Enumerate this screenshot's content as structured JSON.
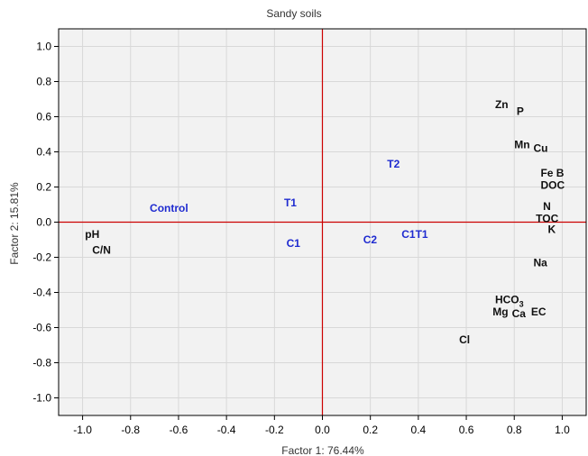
{
  "chart_data": {
    "type": "scatter",
    "title": "Sandy soils",
    "xlabel": "Factor 1: 76.44%",
    "ylabel": "Factor 2: 15.81%",
    "xlim": [
      -1.1,
      1.1
    ],
    "ylim": [
      -1.1,
      1.1
    ],
    "xticks": [
      "-1.0",
      "-0.8",
      "-0.6",
      "-0.4",
      "-0.2",
      "0.0",
      "0.2",
      "0.4",
      "0.6",
      "0.8",
      "1.0"
    ],
    "yticks": [
      "1.0",
      "0.8",
      "0.6",
      "0.4",
      "0.2",
      "0.0",
      "-0.2",
      "-0.4",
      "-0.6",
      "-0.8",
      "-1.0"
    ],
    "grid": true,
    "reference_lines": {
      "x": 0,
      "y": 0,
      "color": "#cc0000"
    },
    "variables": [
      {
        "label": "Zn",
        "x": 0.72,
        "y": 0.67
      },
      {
        "label": "P",
        "x": 0.81,
        "y": 0.63
      },
      {
        "label": "Mn",
        "x": 0.8,
        "y": 0.44
      },
      {
        "label": "Cu",
        "x": 0.88,
        "y": 0.42
      },
      {
        "label": "Fe B",
        "x": 0.91,
        "y": 0.28
      },
      {
        "label": "DOC",
        "x": 0.91,
        "y": 0.21
      },
      {
        "label": "N",
        "x": 0.92,
        "y": 0.09
      },
      {
        "label": "TOC",
        "x": 0.89,
        "y": 0.02
      },
      {
        "label": "K",
        "x": 0.94,
        "y": -0.04
      },
      {
        "label": "Na",
        "x": 0.88,
        "y": -0.23
      },
      {
        "label": "HCO",
        "x": 0.72,
        "y": -0.44,
        "subscript": "3"
      },
      {
        "label": "Mg",
        "x": 0.71,
        "y": -0.51
      },
      {
        "label": "Ca",
        "x": 0.79,
        "y": -0.52
      },
      {
        "label": "EC",
        "x": 0.87,
        "y": -0.51
      },
      {
        "label": "Cl",
        "x": 0.57,
        "y": -0.67
      },
      {
        "label": "pH",
        "x": -0.99,
        "y": -0.07
      },
      {
        "label": "C/N",
        "x": -0.96,
        "y": -0.16
      }
    ],
    "cases": [
      {
        "label": "Control",
        "x": -0.72,
        "y": 0.08
      },
      {
        "label": "T1",
        "x": -0.16,
        "y": 0.11
      },
      {
        "label": "T2",
        "x": 0.27,
        "y": 0.33
      },
      {
        "label": "C1",
        "x": -0.15,
        "y": -0.12
      },
      {
        "label": "C2",
        "x": 0.17,
        "y": -0.1
      },
      {
        "label": "C1T1",
        "x": 0.33,
        "y": -0.07
      }
    ],
    "colors": {
      "variables": "#111111",
      "cases": "#1f2bd0",
      "reference": "#cc0000",
      "grid": "#d8d8d8",
      "plot_bg": "#f2f2f2",
      "frame": "#000000"
    }
  }
}
